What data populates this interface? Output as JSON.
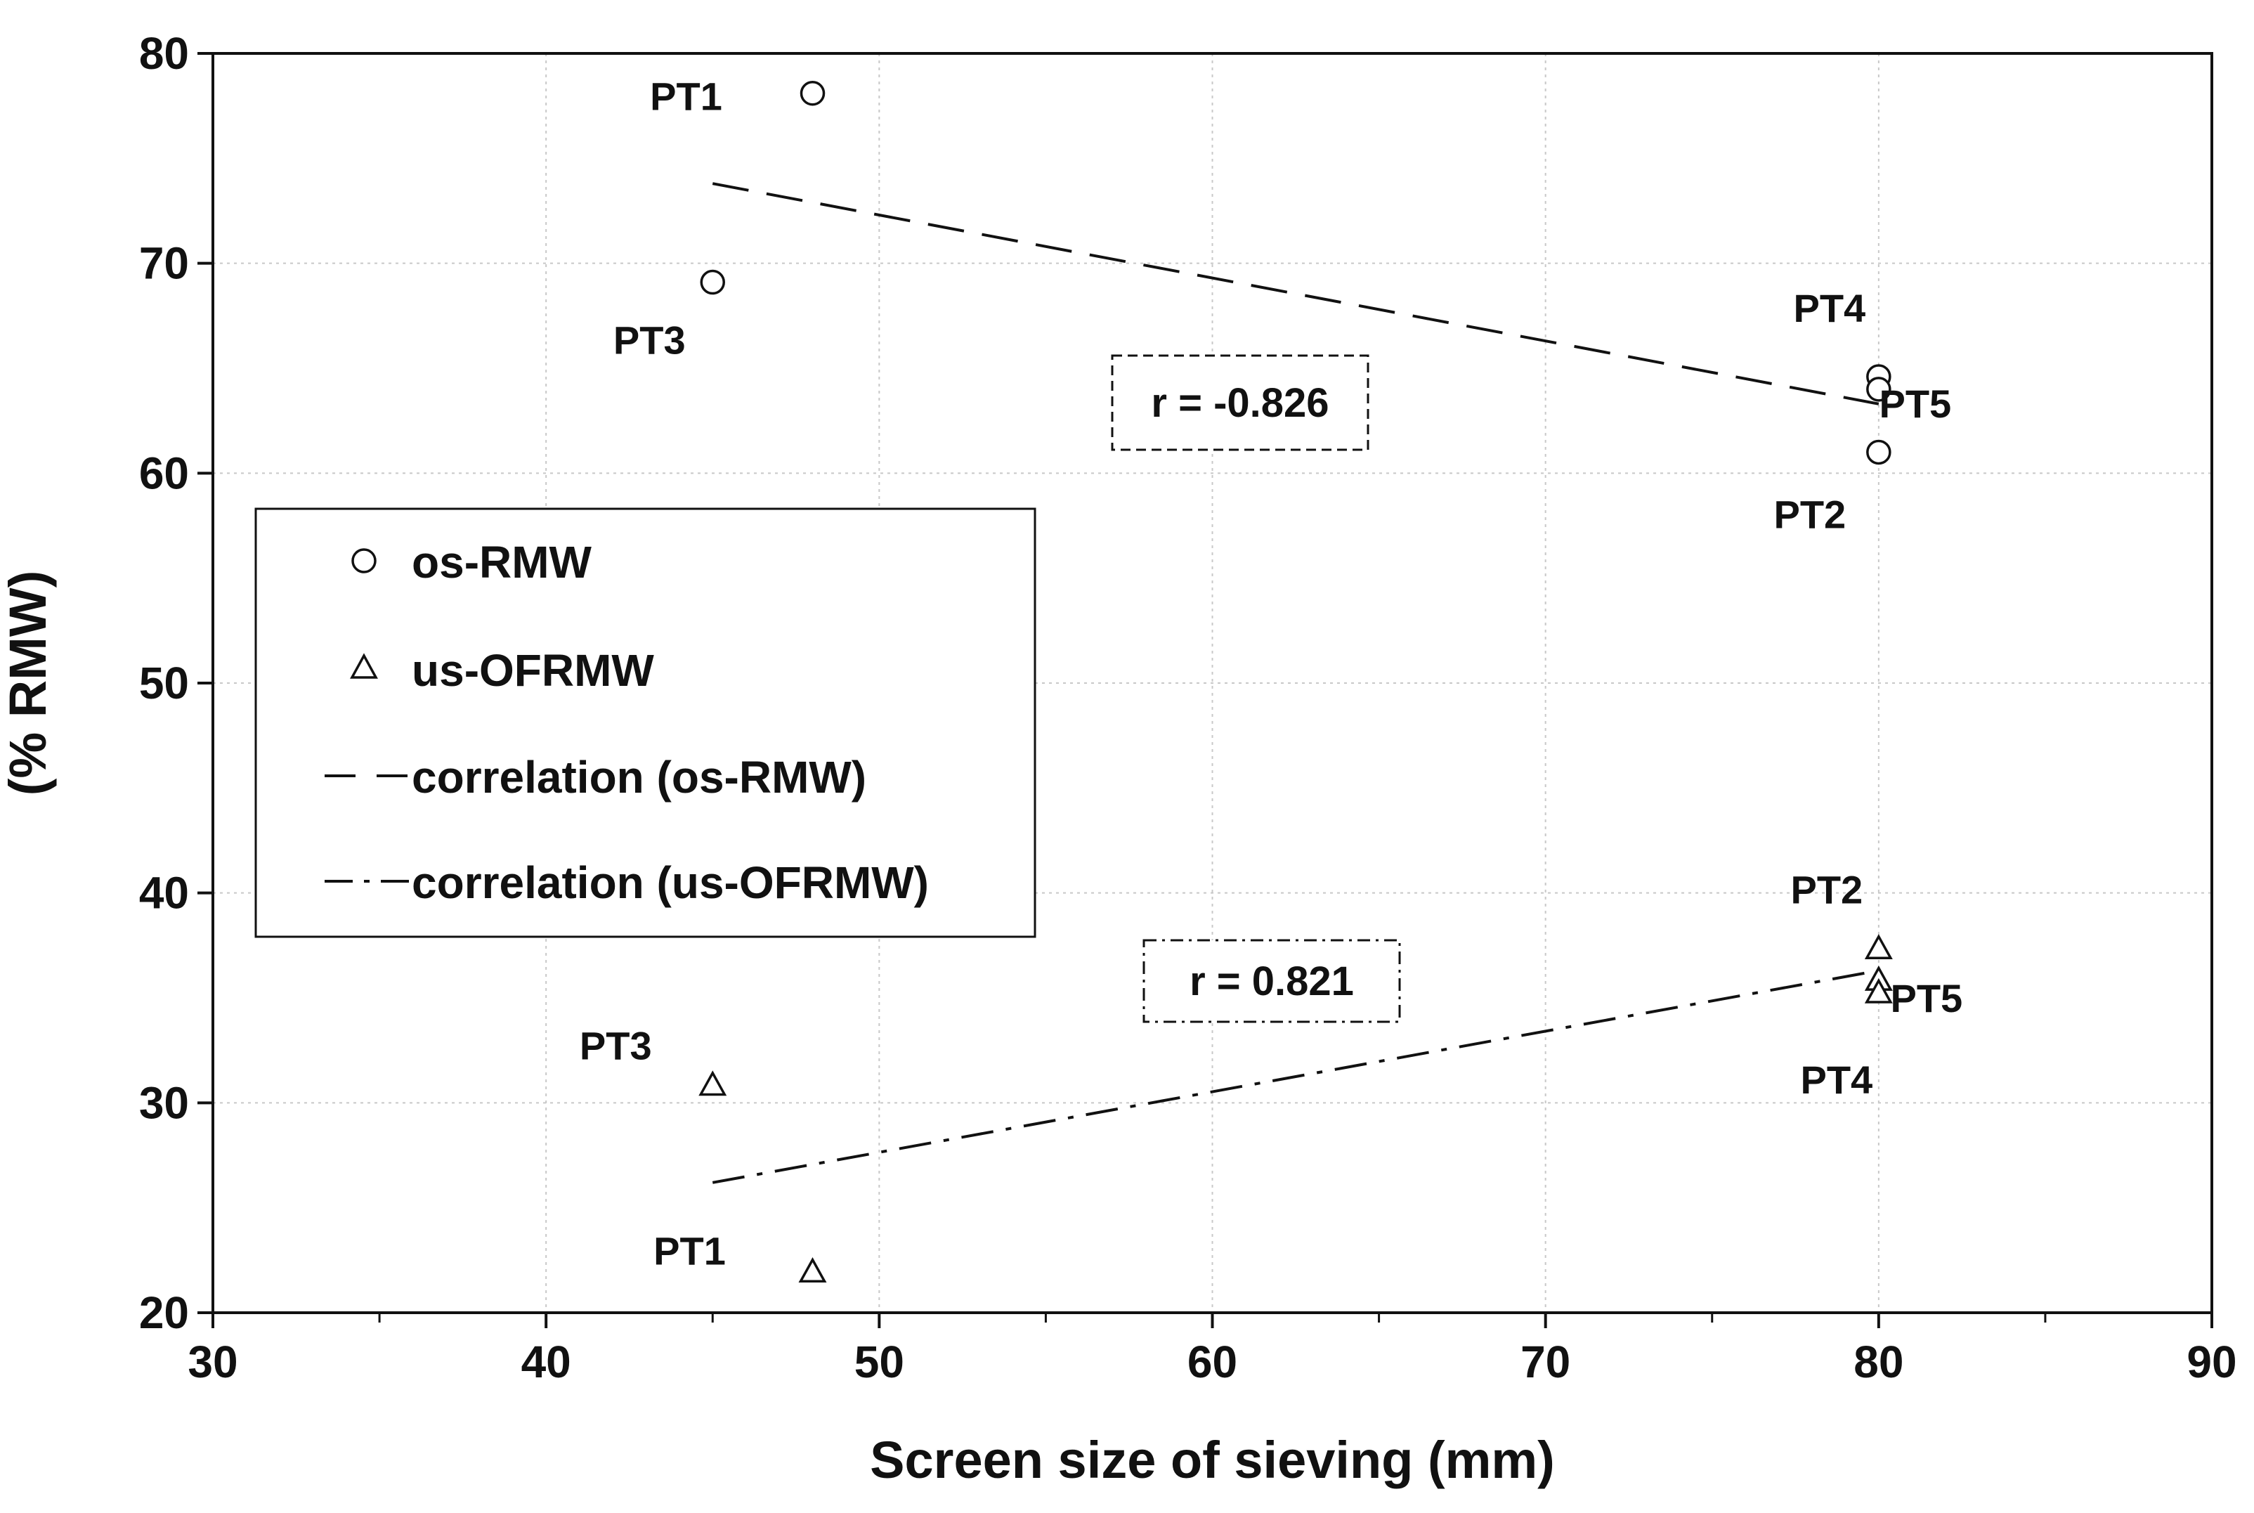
{
  "chart_data": {
    "type": "scatter",
    "title": "",
    "xlabel": "Screen size of sieving (mm)",
    "ylabel": "(% RMW)",
    "xlim": [
      30,
      90
    ],
    "ylim": [
      20,
      80
    ],
    "xticks": [
      30,
      40,
      50,
      60,
      70,
      80,
      90
    ],
    "yticks": [
      20,
      30,
      40,
      50,
      60,
      70,
      80
    ],
    "grid": true,
    "legend_position": "middle-left",
    "series": [
      {
        "name": "os-RMW",
        "marker": "circle",
        "points": [
          {
            "label": "PT1",
            "x": 48,
            "y": 78.1
          },
          {
            "label": "PT3",
            "x": 45,
            "y": 69.1
          },
          {
            "label": "PT4",
            "x": 80,
            "y": 64.6
          },
          {
            "label": "PT5",
            "x": 80,
            "y": 64.0
          },
          {
            "label": "PT2",
            "x": 80,
            "y": 61.0
          }
        ]
      },
      {
        "name": "us-OFRMW",
        "marker": "triangle",
        "points": [
          {
            "label": "PT2",
            "x": 80,
            "y": 37.3
          },
          {
            "label": "PT5",
            "x": 80,
            "y": 35.8
          },
          {
            "label": "PT4",
            "x": 80,
            "y": 35.2
          },
          {
            "label": "PT3",
            "x": 45,
            "y": 30.8
          },
          {
            "label": "PT1",
            "x": 48,
            "y": 21.9
          }
        ]
      }
    ],
    "trendlines": [
      {
        "name": "correlation (os-RMW)",
        "style": "dash",
        "from": [
          45,
          73.8
        ],
        "to": [
          80,
          63.3
        ],
        "r_label": "r = -0.826"
      },
      {
        "name": "correlation (us-OFRMW)",
        "style": "dash-dot",
        "from": [
          45,
          26.2
        ],
        "to": [
          80,
          36.3
        ],
        "r_label": "r = 0.821"
      }
    ]
  },
  "legend": {
    "items": [
      {
        "label": "os-RMW",
        "symbol": "circle"
      },
      {
        "label": "us-OFRMW",
        "symbol": "triangle"
      },
      {
        "label": "correlation (os-RMW)",
        "symbol": "dash"
      },
      {
        "label": "correlation (us-OFRMW)",
        "symbol": "dash-dot"
      }
    ]
  },
  "colors": {
    "ink": "#111111",
    "grid": "#c8c8c8",
    "background": "#ffffff"
  }
}
